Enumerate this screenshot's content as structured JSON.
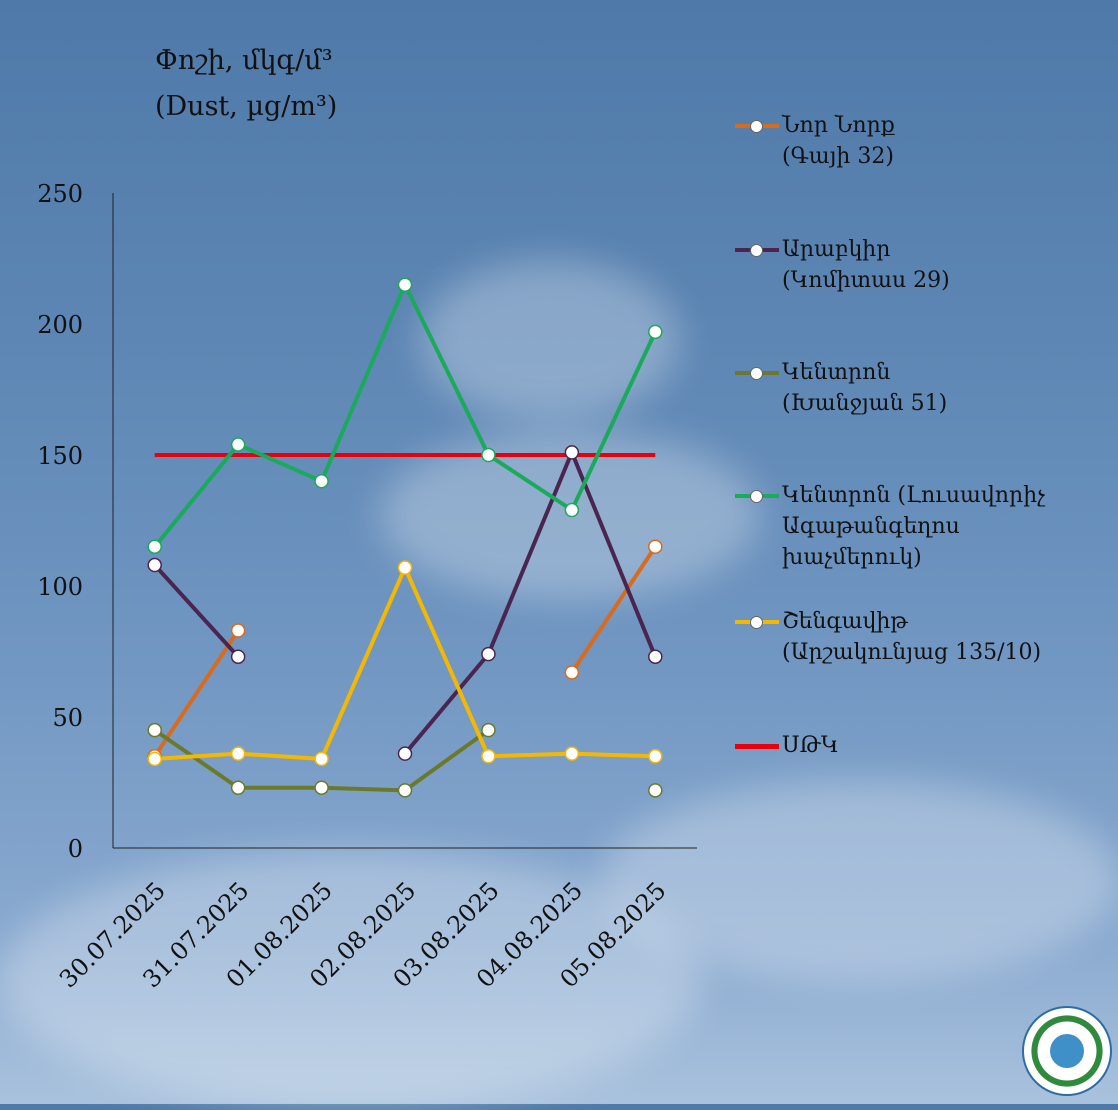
{
  "title": {
    "line1": "Փոշի, մկգ/մ³",
    "line2": "(Dust, µg/m³)"
  },
  "chart_data": {
    "type": "line",
    "categories": [
      "30.07.2025",
      "31.07.2025",
      "01.08.2025",
      "02.08.2025",
      "03.08.2025",
      "04.08.2025",
      "05.08.2025"
    ],
    "ylim": [
      0,
      250
    ],
    "yticks": [
      "0",
      "50",
      "100",
      "150",
      "200",
      "250"
    ],
    "grid": false,
    "legend_position": "right",
    "series": [
      {
        "name": "Նոր Նորք\n(Գայի 32)",
        "color": "#d86b1e",
        "values": [
          35,
          83,
          null,
          null,
          null,
          67,
          115
        ]
      },
      {
        "name": "Արաբկիր\n(Կոմիտաս 29)",
        "color": "#4a2550",
        "values": [
          108,
          73,
          null,
          36,
          74,
          151,
          73
        ]
      },
      {
        "name": "Կենտրոն\n(Խանջյան 51)",
        "color": "#6a7a2a",
        "values": [
          45,
          23,
          23,
          22,
          45,
          null,
          22
        ]
      },
      {
        "name": "Կենտրոն (Լուսավորիչ\nԱգաթանգեղոս\nխաչմերուկ)",
        "color": "#1ba95c",
        "values": [
          115,
          154,
          140,
          215,
          150,
          129,
          197
        ]
      },
      {
        "name": "Շենգավիթ\n(Արշակունյաց 135/10)",
        "color": "#f5b800",
        "values": [
          34,
          36,
          34,
          107,
          35,
          36,
          35
        ]
      }
    ],
    "threshold": {
      "name": "ՍԹԿ",
      "color": "#e8000d",
      "value": 150
    }
  }
}
